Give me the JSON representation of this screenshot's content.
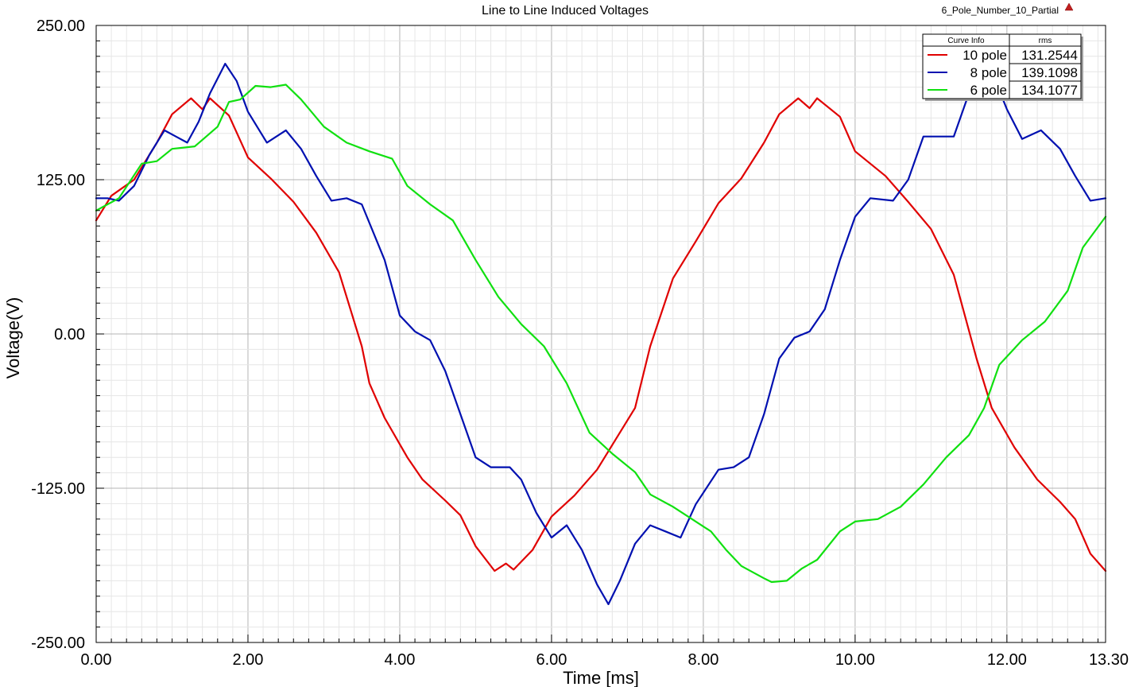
{
  "design_name": "6_Pole_Number_10_Partial",
  "chart_data": {
    "type": "line",
    "title": "Line to Line Induced Voltages",
    "xlabel": "Time [ms]",
    "ylabel": "Voltage(V)",
    "xlim": [
      0,
      13.3
    ],
    "ylim": [
      -250,
      250
    ],
    "x_ticks": [
      "0.00",
      "2.00",
      "4.00",
      "6.00",
      "8.00",
      "10.00",
      "12.00",
      "13.30"
    ],
    "y_ticks": [
      "250.00",
      "125.00",
      "0.00",
      "-125.00",
      "-250.00"
    ],
    "grid": true,
    "legend": {
      "position": "top-right",
      "header_name": "Curve Info",
      "header_value": "rms"
    },
    "series": [
      {
        "name": "10 pole",
        "rms": "131.2544",
        "color": "#e00000",
        "points": [
          [
            0,
            92
          ],
          [
            0.2,
            112
          ],
          [
            0.5,
            125
          ],
          [
            0.8,
            155
          ],
          [
            1.0,
            178
          ],
          [
            1.25,
            191
          ],
          [
            1.4,
            182
          ],
          [
            1.5,
            191
          ],
          [
            1.75,
            177
          ],
          [
            2.0,
            143
          ],
          [
            2.3,
            126
          ],
          [
            2.6,
            107
          ],
          [
            2.9,
            82
          ],
          [
            3.2,
            50
          ],
          [
            3.5,
            -10
          ],
          [
            3.6,
            -40
          ],
          [
            3.8,
            -68
          ],
          [
            4.1,
            -100
          ],
          [
            4.3,
            -118
          ],
          [
            4.6,
            -135
          ],
          [
            4.8,
            -147
          ],
          [
            5.0,
            -172
          ],
          [
            5.25,
            -192
          ],
          [
            5.4,
            -186
          ],
          [
            5.5,
            -191
          ],
          [
            5.75,
            -175
          ],
          [
            6.0,
            -148
          ],
          [
            6.3,
            -131
          ],
          [
            6.6,
            -110
          ],
          [
            6.8,
            -90
          ],
          [
            7.1,
            -60
          ],
          [
            7.3,
            -10
          ],
          [
            7.6,
            45
          ],
          [
            7.9,
            75
          ],
          [
            8.2,
            106
          ],
          [
            8.5,
            126
          ],
          [
            8.8,
            155
          ],
          [
            9.0,
            178
          ],
          [
            9.25,
            191
          ],
          [
            9.4,
            183
          ],
          [
            9.5,
            191
          ],
          [
            9.8,
            176
          ],
          [
            10.0,
            148
          ],
          [
            10.4,
            128
          ],
          [
            10.7,
            107
          ],
          [
            11.0,
            85
          ],
          [
            11.3,
            48
          ],
          [
            11.6,
            -20
          ],
          [
            11.8,
            -60
          ],
          [
            12.1,
            -92
          ],
          [
            12.4,
            -118
          ],
          [
            12.7,
            -136
          ],
          [
            12.9,
            -150
          ],
          [
            13.1,
            -178
          ],
          [
            13.3,
            -192
          ]
        ]
      },
      {
        "name": "8 pole",
        "rms": "139.1098",
        "color": "#0010b0",
        "points": [
          [
            0,
            110
          ],
          [
            0.15,
            110
          ],
          [
            0.3,
            108
          ],
          [
            0.5,
            120
          ],
          [
            0.7,
            145
          ],
          [
            0.9,
            165
          ],
          [
            1.05,
            160
          ],
          [
            1.2,
            155
          ],
          [
            1.35,
            172
          ],
          [
            1.5,
            195
          ],
          [
            1.7,
            219
          ],
          [
            1.85,
            205
          ],
          [
            2.0,
            180
          ],
          [
            2.25,
            155
          ],
          [
            2.5,
            165
          ],
          [
            2.7,
            150
          ],
          [
            2.9,
            128
          ],
          [
            3.1,
            108
          ],
          [
            3.3,
            110
          ],
          [
            3.5,
            105
          ],
          [
            3.8,
            60
          ],
          [
            4.0,
            15
          ],
          [
            4.2,
            2
          ],
          [
            4.4,
            -5
          ],
          [
            4.6,
            -30
          ],
          [
            4.8,
            -65
          ],
          [
            5.0,
            -100
          ],
          [
            5.2,
            -108
          ],
          [
            5.45,
            -108
          ],
          [
            5.6,
            -118
          ],
          [
            5.8,
            -145
          ],
          [
            6.0,
            -165
          ],
          [
            6.2,
            -155
          ],
          [
            6.4,
            -175
          ],
          [
            6.6,
            -203
          ],
          [
            6.75,
            -219
          ],
          [
            6.9,
            -200
          ],
          [
            7.1,
            -170
          ],
          [
            7.3,
            -155
          ],
          [
            7.5,
            -160
          ],
          [
            7.7,
            -165
          ],
          [
            7.9,
            -138
          ],
          [
            8.2,
            -110
          ],
          [
            8.4,
            -108
          ],
          [
            8.6,
            -100
          ],
          [
            8.8,
            -65
          ],
          [
            9.0,
            -20
          ],
          [
            9.2,
            -3
          ],
          [
            9.4,
            2
          ],
          [
            9.6,
            20
          ],
          [
            9.8,
            60
          ],
          [
            10.0,
            95
          ],
          [
            10.2,
            110
          ],
          [
            10.5,
            108
          ],
          [
            10.7,
            125
          ],
          [
            10.9,
            160
          ],
          [
            11.1,
            160
          ],
          [
            11.3,
            160
          ],
          [
            11.5,
            195
          ],
          [
            11.7,
            219
          ],
          [
            11.85,
            205
          ],
          [
            12.0,
            182
          ],
          [
            12.2,
            158
          ],
          [
            12.45,
            165
          ],
          [
            12.7,
            150
          ],
          [
            12.9,
            128
          ],
          [
            13.1,
            108
          ],
          [
            13.3,
            110
          ]
        ]
      },
      {
        "name": "6 pole",
        "rms": "134.1077",
        "color": "#10e010",
        "points": [
          [
            0,
            100
          ],
          [
            0.3,
            110
          ],
          [
            0.6,
            138
          ],
          [
            0.8,
            140
          ],
          [
            1.0,
            150
          ],
          [
            1.3,
            152
          ],
          [
            1.6,
            168
          ],
          [
            1.75,
            188
          ],
          [
            1.9,
            190
          ],
          [
            2.1,
            201
          ],
          [
            2.3,
            200
          ],
          [
            2.5,
            202
          ],
          [
            2.7,
            190
          ],
          [
            3.0,
            168
          ],
          [
            3.3,
            155
          ],
          [
            3.6,
            148
          ],
          [
            3.9,
            142
          ],
          [
            4.1,
            120
          ],
          [
            4.4,
            105
          ],
          [
            4.7,
            92
          ],
          [
            5.0,
            60
          ],
          [
            5.3,
            30
          ],
          [
            5.6,
            8
          ],
          [
            5.9,
            -10
          ],
          [
            6.2,
            -40
          ],
          [
            6.5,
            -80
          ],
          [
            6.8,
            -97
          ],
          [
            7.1,
            -112
          ],
          [
            7.3,
            -130
          ],
          [
            7.6,
            -140
          ],
          [
            7.8,
            -148
          ],
          [
            8.1,
            -160
          ],
          [
            8.3,
            -175
          ],
          [
            8.5,
            -188
          ],
          [
            8.8,
            -198
          ],
          [
            8.9,
            -201
          ],
          [
            9.1,
            -200
          ],
          [
            9.3,
            -190
          ],
          [
            9.5,
            -183
          ],
          [
            9.8,
            -160
          ],
          [
            10.0,
            -152
          ],
          [
            10.3,
            -150
          ],
          [
            10.6,
            -140
          ],
          [
            10.9,
            -122
          ],
          [
            11.2,
            -100
          ],
          [
            11.5,
            -82
          ],
          [
            11.7,
            -60
          ],
          [
            11.9,
            -25
          ],
          [
            12.2,
            -5
          ],
          [
            12.5,
            10
          ],
          [
            12.8,
            35
          ],
          [
            13.0,
            70
          ],
          [
            13.3,
            95
          ]
        ]
      }
    ]
  }
}
